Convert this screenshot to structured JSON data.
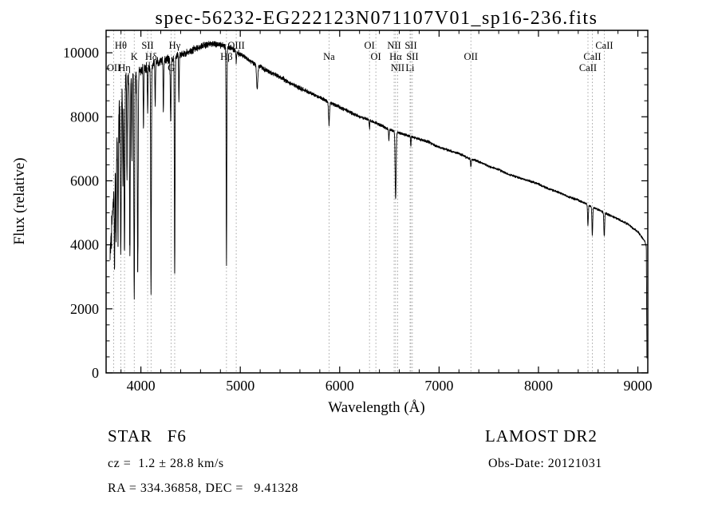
{
  "title": "spec-56232-EG222123N071107V01_sp16-236.fits",
  "footer": {
    "class_label": "STAR   F6",
    "survey": "LAMOST DR2",
    "cz": "cz =  1.2 ± 28.8 km/s",
    "obs_date": "Obs-Date: 20121031",
    "radec": "RA = 334.36858, DEC =   9.41328"
  },
  "chart_data": {
    "type": "line",
    "title": "spec-56232-EG222123N071107V01_sp16-236.fits",
    "xlabel": "Wavelength (Å)",
    "ylabel": "Flux (relative)",
    "xlim": [
      3650,
      9100
    ],
    "ylim": [
      0,
      10700
    ],
    "xticks": [
      4000,
      5000,
      6000,
      7000,
      8000,
      9000
    ],
    "yticks": [
      0,
      2000,
      4000,
      6000,
      8000,
      10000
    ],
    "x_minor_step": 200,
    "y_minor_step": 500,
    "grid": false,
    "legend": "none",
    "series_color": "#000000",
    "guide_color": "#8f8f8f",
    "continuum": [
      [
        3690,
        3800
      ],
      [
        3720,
        5200
      ],
      [
        3750,
        6900
      ],
      [
        3780,
        8200
      ],
      [
        3820,
        8900
      ],
      [
        3860,
        9200
      ],
      [
        3900,
        9350
      ],
      [
        3950,
        9300
      ],
      [
        4000,
        9450
      ],
      [
        4100,
        9600
      ],
      [
        4200,
        9750
      ],
      [
        4300,
        9800
      ],
      [
        4400,
        9950
      ],
      [
        4500,
        10050
      ],
      [
        4600,
        10200
      ],
      [
        4700,
        10300
      ],
      [
        4800,
        10250
      ],
      [
        4900,
        10150
      ],
      [
        5000,
        9950
      ],
      [
        5100,
        9750
      ],
      [
        5200,
        9550
      ],
      [
        5300,
        9400
      ],
      [
        5400,
        9250
      ],
      [
        5500,
        9050
      ],
      [
        5600,
        8900
      ],
      [
        5700,
        8750
      ],
      [
        5800,
        8600
      ],
      [
        5900,
        8450
      ],
      [
        6000,
        8300
      ],
      [
        6100,
        8150
      ],
      [
        6200,
        8000
      ],
      [
        6300,
        7900
      ],
      [
        6400,
        7750
      ],
      [
        6500,
        7600
      ],
      [
        6600,
        7500
      ],
      [
        6700,
        7400
      ],
      [
        6800,
        7300
      ],
      [
        6900,
        7200
      ],
      [
        7000,
        7050
      ],
      [
        7100,
        6950
      ],
      [
        7200,
        6850
      ],
      [
        7300,
        6700
      ],
      [
        7400,
        6600
      ],
      [
        7500,
        6450
      ],
      [
        7600,
        6350
      ],
      [
        7700,
        6200
      ],
      [
        7800,
        6100
      ],
      [
        7900,
        6000
      ],
      [
        8000,
        5900
      ],
      [
        8100,
        5750
      ],
      [
        8200,
        5650
      ],
      [
        8300,
        5500
      ],
      [
        8400,
        5400
      ],
      [
        8500,
        5250
      ],
      [
        8600,
        5100
      ],
      [
        8700,
        4950
      ],
      [
        8800,
        4800
      ],
      [
        8900,
        4650
      ],
      [
        9000,
        4400
      ],
      [
        9040,
        4250
      ],
      [
        9070,
        4100
      ],
      [
        9085,
        3950
      ],
      [
        9092,
        0
      ]
    ],
    "absorption_lines": [
      [
        3735,
        3000,
        3
      ],
      [
        3750,
        2800,
        3
      ],
      [
        3770,
        3800,
        3.5
      ],
      [
        3798,
        4800,
        4
      ],
      [
        3820,
        3000,
        3
      ],
      [
        3835,
        5300,
        4
      ],
      [
        3860,
        3200,
        3
      ],
      [
        3889,
        5600,
        4
      ],
      [
        3910,
        2800,
        3
      ],
      [
        3933,
        7000,
        4
      ],
      [
        3968,
        6200,
        4
      ],
      [
        4026,
        1800,
        3
      ],
      [
        4068,
        1400,
        3
      ],
      [
        4102,
        7200,
        3.5
      ],
      [
        4144,
        1300,
        3
      ],
      [
        4226,
        1600,
        3
      ],
      [
        4300,
        1900,
        4
      ],
      [
        4340,
        6800,
        3.5
      ],
      [
        4383,
        1500,
        3
      ],
      [
        4861,
        6800,
        3.5
      ],
      [
        4959,
        350,
        3
      ],
      [
        5170,
        750,
        6
      ],
      [
        5893,
        700,
        5
      ],
      [
        6300,
        250,
        3
      ],
      [
        6495,
        350,
        3
      ],
      [
        6563,
        2100,
        5
      ],
      [
        6716,
        280,
        3
      ],
      [
        7320,
        220,
        4
      ],
      [
        8498,
        650,
        4
      ],
      [
        8542,
        880,
        4
      ],
      [
        8662,
        760,
        4
      ]
    ],
    "noise_profile": [
      [
        3690,
        500
      ],
      [
        3800,
        430
      ],
      [
        3900,
        380
      ],
      [
        4000,
        260
      ],
      [
        4200,
        200
      ],
      [
        4400,
        160
      ],
      [
        4700,
        130
      ],
      [
        5000,
        110
      ],
      [
        5500,
        95
      ],
      [
        6000,
        80
      ],
      [
        6500,
        65
      ],
      [
        7000,
        58
      ],
      [
        7500,
        52
      ],
      [
        8000,
        50
      ],
      [
        8600,
        55
      ],
      [
        9000,
        60
      ],
      [
        9092,
        40
      ]
    ],
    "annotations": [
      {
        "label": "Hθ",
        "wavelength": 3798,
        "row": 1
      },
      {
        "label": "SII",
        "wavelength": 4068,
        "row": 1
      },
      {
        "label": "Hγ",
        "wavelength": 4340,
        "row": 1
      },
      {
        "label": "OIII",
        "wavelength": 4959,
        "row": 1
      },
      {
        "label": "OI",
        "wavelength": 6300,
        "row": 1
      },
      {
        "label": "NII",
        "wavelength": 6548,
        "row": 1
      },
      {
        "label": "SII",
        "wavelength": 6716,
        "row": 1
      },
      {
        "label": "CaII",
        "wavelength": 8662,
        "row": 1
      },
      {
        "label": "K",
        "wavelength": 3933,
        "row": 2
      },
      {
        "label": "Hδ",
        "wavelength": 4102,
        "row": 2
      },
      {
        "label": "Hβ",
        "wavelength": 4861,
        "row": 2
      },
      {
        "label": "Na",
        "wavelength": 5893,
        "row": 2
      },
      {
        "label": "OI",
        "wavelength": 6364,
        "row": 2
      },
      {
        "label": "Hα",
        "wavelength": 6563,
        "row": 2
      },
      {
        "label": "SII",
        "wavelength": 6731,
        "row": 2
      },
      {
        "label": "OII",
        "wavelength": 7320,
        "row": 2
      },
      {
        "label": "CaII",
        "wavelength": 8542,
        "row": 2
      },
      {
        "label": "OII",
        "wavelength": 3727,
        "row": 3
      },
      {
        "label": "Hη",
        "wavelength": 3835,
        "row": 3
      },
      {
        "label": "G",
        "wavelength": 4305,
        "row": 3
      },
      {
        "label": "NII",
        "wavelength": 6583,
        "row": 3
      },
      {
        "label": "Li",
        "wavelength": 6708,
        "row": 3
      },
      {
        "label": "CaII",
        "wavelength": 8498,
        "row": 3
      }
    ]
  }
}
